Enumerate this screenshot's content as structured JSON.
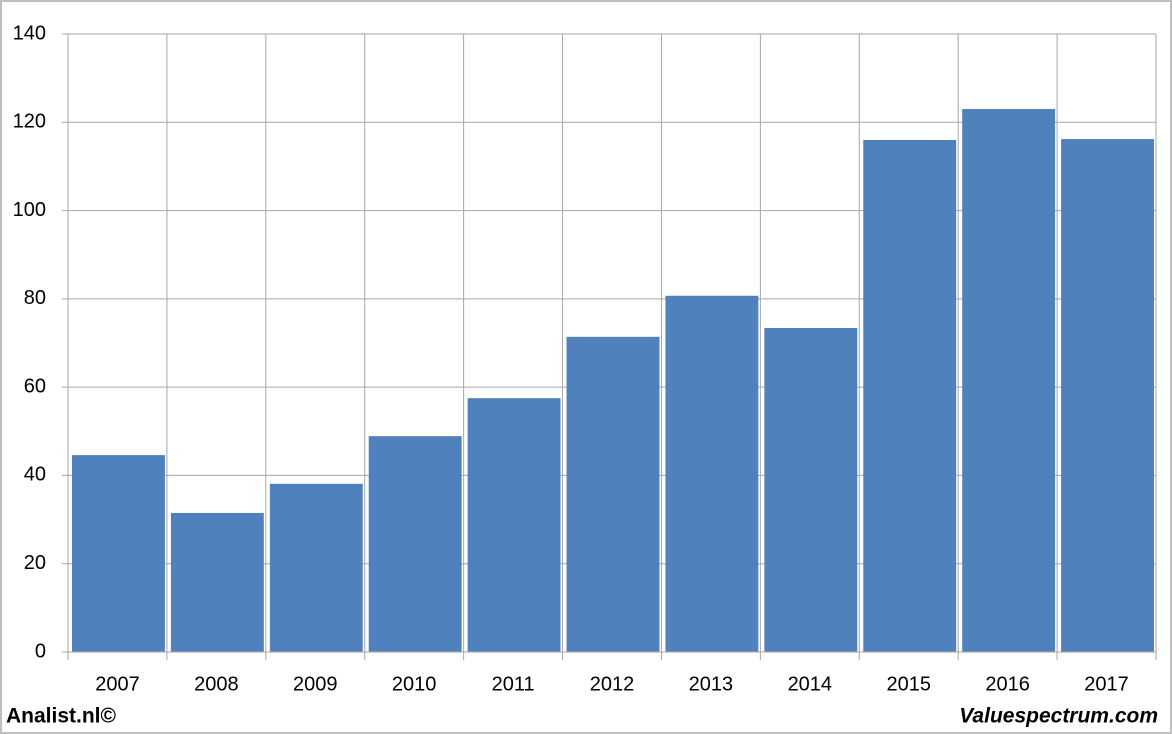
{
  "chart_data": {
    "type": "bar",
    "categories": [
      "2007",
      "2008",
      "2009",
      "2010",
      "2011",
      "2012",
      "2013",
      "2014",
      "2015",
      "2016",
      "2017"
    ],
    "values": [
      44.6,
      31.5,
      38.1,
      48.9,
      57.5,
      71.4,
      80.7,
      73.4,
      116.0,
      123.0,
      116.2
    ],
    "color": "#4f81bd",
    "ylim": [
      0,
      140
    ],
    "yticks": [
      0,
      20,
      40,
      60,
      80,
      100,
      120,
      140
    ],
    "grid": true,
    "footer_left": "Analist.nl©",
    "footer_right": "Valuespectrum.com"
  }
}
